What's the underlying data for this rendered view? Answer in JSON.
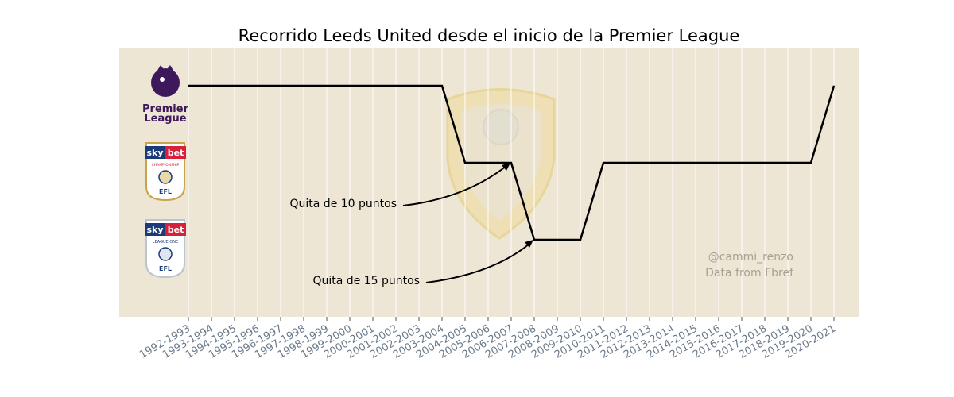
{
  "chart_data": {
    "type": "line",
    "title": "Recorrido Leeds United desde el inicio de la Premier League",
    "x": [
      "1992-1993",
      "1993-1994",
      "1994-1995",
      "1995-1996",
      "1996-1997",
      "1997-1998",
      "1998-1999",
      "1999-2000",
      "2000-2001",
      "2001-2002",
      "2002-2003",
      "2003-2004",
      "2004-2005",
      "2005-2006",
      "2006-2007",
      "2007-2008",
      "2008-2009",
      "2009-2010",
      "2010-2011",
      "2011-2012",
      "2012-2013",
      "2013-2014",
      "2014-2015",
      "2015-2016",
      "2016-2017",
      "2017-2018",
      "2018-2019",
      "2019-2020",
      "2020-2021"
    ],
    "y_levels": [
      "Premier League",
      "Championship",
      "League One"
    ],
    "series": [
      {
        "values": [
          1,
          1,
          1,
          1,
          1,
          1,
          1,
          1,
          1,
          1,
          1,
          1,
          2,
          2,
          2,
          3,
          3,
          3,
          2,
          2,
          2,
          2,
          2,
          2,
          2,
          2,
          2,
          2,
          1
        ]
      }
    ],
    "annotations": [
      {
        "text": "Quita de 10 puntos",
        "x": "2006-2007",
        "y": 2
      },
      {
        "text": "Quita de 15 puntos",
        "x": "2007-2008",
        "y": 3
      }
    ],
    "credits": [
      "@cammi_renzo",
      "Data from Fbref"
    ],
    "grid": "vertical",
    "colors": {
      "background": "#ede6d5",
      "line": "#000000",
      "grid": "#ffffff",
      "tick": "#6b7b8c",
      "credit": "#a6a293"
    }
  },
  "logos": {
    "premier_league": {
      "line1": "Premier",
      "line2": "League"
    },
    "championship": {
      "brand_left": "sky",
      "brand_right": "bet",
      "name": "CHAMPIONSHIP",
      "org": "EFL"
    },
    "league_one": {
      "brand_left": "sky",
      "brand_right": "bet",
      "name": "LEAGUE ONE",
      "org": "EFL"
    }
  }
}
